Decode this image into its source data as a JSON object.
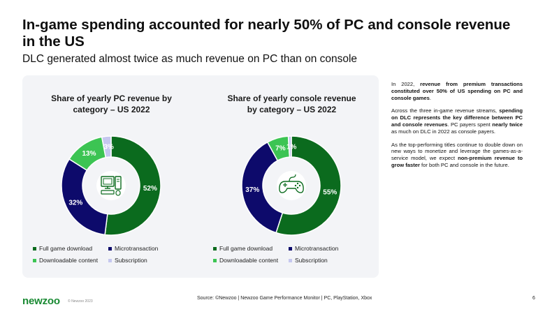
{
  "header": {
    "title": "In-game spending accounted for nearly 50% of PC and console revenue in the US",
    "subtitle": "DLC generated almost twice as much revenue on PC than on console"
  },
  "chart_data": [
    {
      "type": "pie",
      "variant": "donut",
      "title": "Share of yearly PC revenue by\ncategory – US 2022",
      "center_icon": "computer-icon",
      "slices": [
        {
          "label": "Full game download",
          "value": 52,
          "display": "52%",
          "color": "#0b6b1e"
        },
        {
          "label": "Microtransaction",
          "value": 32,
          "display": "32%",
          "color": "#0d0a6b"
        },
        {
          "label": "Downloadable content",
          "value": 13,
          "display": "13%",
          "color": "#3cc453"
        },
        {
          "label": "Subscription",
          "value": 3,
          "display": "3%",
          "color": "#c5c7ef"
        }
      ],
      "legend": [
        "Full game download",
        "Microtransaction",
        "Downloadable content",
        "Subscription"
      ]
    },
    {
      "type": "pie",
      "variant": "donut",
      "title": "Share of yearly console revenue\nby category – US 2022",
      "center_icon": "gamepad-icon",
      "slices": [
        {
          "label": "Full game download",
          "value": 55,
          "display": "55%",
          "color": "#0b6b1e"
        },
        {
          "label": "Microtransaction",
          "value": 37,
          "display": "37%",
          "color": "#0d0a6b"
        },
        {
          "label": "Downloadable content",
          "value": 7,
          "display": "7%",
          "color": "#3cc453"
        },
        {
          "label": "Subscription",
          "value": 1,
          "display": "1%",
          "color": "#c5c7ef"
        }
      ],
      "legend": [
        "Full game download",
        "Microtransaction",
        "Downloadable content",
        "Subscription"
      ]
    }
  ],
  "commentary": {
    "p1": [
      {
        "t": "In 2022, ",
        "b": false
      },
      {
        "t": "revenue from premium transactions constituted over 50% of US spending on PC and console games",
        "b": true
      },
      {
        "t": ".",
        "b": false
      }
    ],
    "p2": [
      {
        "t": "Across the three in-game revenue streams, ",
        "b": false
      },
      {
        "t": "spending on DLC represents the key difference between PC and console revenues",
        "b": true
      },
      {
        "t": ". PC payers spent ",
        "b": false
      },
      {
        "t": "nearly twice",
        "b": true
      },
      {
        "t": " as much on DLC in 2022 as console payers.",
        "b": false
      }
    ],
    "p3": [
      {
        "t": "As the top-performing titles continue to double down on new ways to monetize and leverage the games-as-a-service model, we expect ",
        "b": false
      },
      {
        "t": "non-premium revenue to grow faster",
        "b": true
      },
      {
        "t": " for both PC and console in the future.",
        "b": false
      }
    ]
  },
  "footer": {
    "logo": "newzoo",
    "copyright": "© Newzoo 2023",
    "source": "Source: ©Newzoo | Newzoo Game Performance Monitor | PC, PlayStation, Xbox",
    "page_number": "6"
  },
  "colors": {
    "full_game": "#0b6b1e",
    "microtransaction": "#0d0a6b",
    "dlc": "#3cc453",
    "subscription": "#c5c7ef",
    "brand": "#1a8a33",
    "panel_bg": "#f3f4f7"
  }
}
